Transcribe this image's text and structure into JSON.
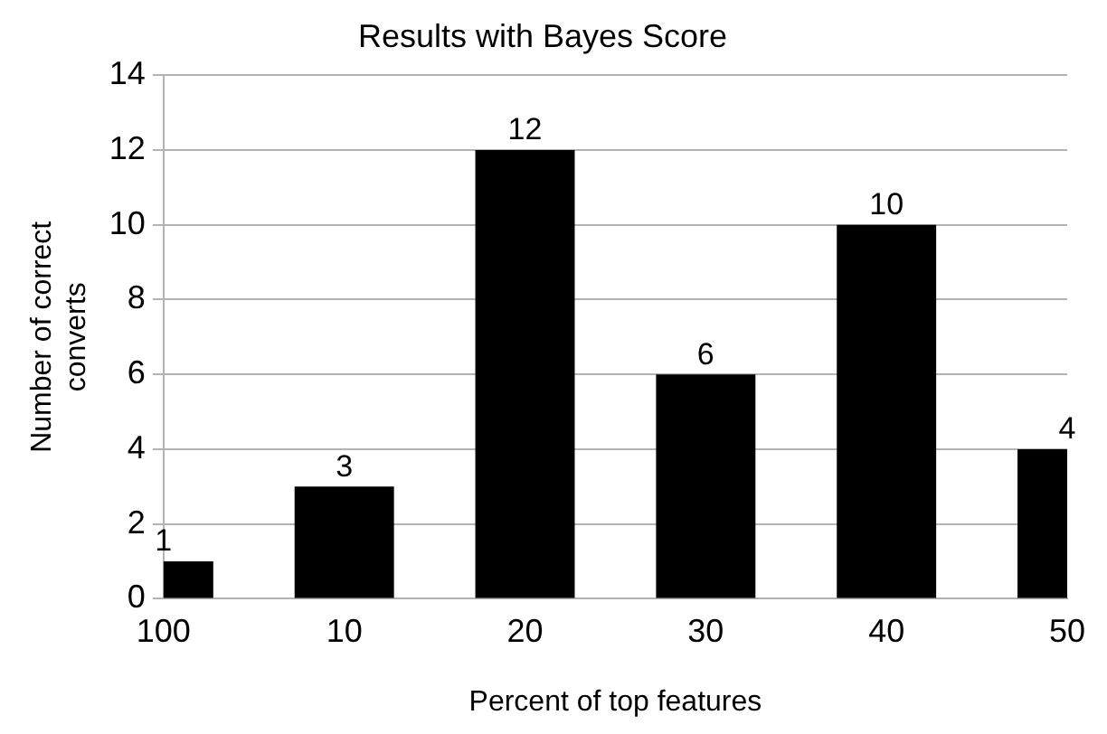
{
  "chart_data": {
    "type": "bar",
    "title": "Results with Bayes Score",
    "xlabel": "Percent of top features",
    "ylabel": "Number of correct converts",
    "categories": [
      "100",
      "10",
      "20",
      "30",
      "40",
      "50"
    ],
    "values": [
      1,
      3,
      12,
      6,
      10,
      4
    ],
    "color": "#000000",
    "ylim": [
      0,
      14
    ],
    "yticks": [
      0,
      2,
      4,
      6,
      8,
      10,
      12,
      14
    ],
    "grid": "y",
    "data_labels": true,
    "legend": false
  }
}
